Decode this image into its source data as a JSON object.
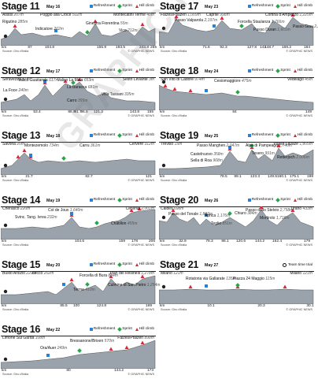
{
  "legend": {
    "refreshment": "Refreshment",
    "sprint": "Sprint",
    "hill": "Hill climb",
    "ttt": "Team time trial"
  },
  "km_label": "km",
  "source": "Source: Giro d'Italia",
  "credit": "© GRAPHIC NEWS",
  "watermark": "GRAPHIC NEWS",
  "stages": [
    {
      "title": "Stage 11",
      "date": "May 16",
      "start": "Assisi",
      "start_elev": "207m",
      "finish": "Montecatini Terme",
      "finish_elev": "40m",
      "labels": [
        {
          "t": "Poggio alla Croce",
          "e": "502m"
        },
        {
          "t": "Rigutino",
          "e": "285m"
        },
        {
          "t": "Indicatore",
          "e": "262m"
        },
        {
          "t": "Ginestra Fiorentina",
          "e": "55m"
        },
        {
          "t": "Vico",
          "e": "212m"
        }
      ],
      "km": [
        "87",
        "104.8",
        "155.9",
        "193.5",
        "243.8",
        "255"
      ]
    },
    {
      "title": "Stage 17",
      "date": "May 23",
      "start": "Falzes/Pfalzen",
      "start_elev": "1,009m",
      "finish": "Cortina d'Ampezzo",
      "finish_elev": "1,225m",
      "labels": [
        {
          "t": "Caprile",
          "e": "998m"
        },
        {
          "t": "Passo Valparola",
          "e": "2,197m"
        },
        {
          "t": "Forcella Staulanza",
          "e": "1,766m"
        },
        {
          "t": "Passo Duran",
          "e": "1,601m"
        },
        {
          "t": "Passo Giau",
          "e": "2,236m"
        }
      ],
      "km": [
        "71.6",
        "92.3",
        "127.8",
        "142",
        "148.7",
        "168.2",
        "184"
      ]
    },
    {
      "title": "Stage 12",
      "date": "May 17",
      "start": "Seravezza",
      "start_elev": "57m",
      "finish": "Sestri Levante",
      "finish_elev": "3m",
      "labels": [
        {
          "t": "Valico Guaitarola",
          "e": "617m"
        },
        {
          "t": "Valico La Mola",
          "e": "653m"
        },
        {
          "t": "La Baracca",
          "e": "681m"
        },
        {
          "t": "La Foce",
          "e": "240m"
        },
        {
          "t": "Carro",
          "e": "395m"
        },
        {
          "t": "Villa Tassani",
          "e": "335m"
        }
      ],
      "km": [
        "53.4",
        "88.9",
        "91.7",
        "96.8",
        "121.2",
        "143.8",
        "155"
      ]
    },
    {
      "title": "Stage 18",
      "date": "May 24",
      "start": "San Vito di Cadore",
      "start_elev": "974m",
      "finish": "Vedelago",
      "finish_elev": "45m",
      "labels": [
        {
          "t": "Cesiomaggiore",
          "e": "475m"
        }
      ],
      "km": [
        "84",
        "149"
      ]
    },
    {
      "title": "Stage 13",
      "date": "May 18",
      "start": "Savona",
      "start_elev": "20m",
      "finish": "Cervere",
      "finish_elev": "312m",
      "labels": [
        {
          "t": "Montezemolo",
          "e": "734m"
        },
        {
          "t": "Carru",
          "e": "361m"
        }
      ],
      "km": [
        "21.7",
        "82.7",
        "121"
      ]
    },
    {
      "title": "Stage 19",
      "date": "May 25",
      "start": "Treviso",
      "start_elev": "15m",
      "finish": "Passo Lavazè",
      "finish_elev": "1,805m",
      "labels": [
        {
          "t": "Passo Manghen",
          "e": "2,047m"
        },
        {
          "t": "Alpe di Pampeago",
          "e": "1,740m"
        },
        {
          "t": "Castelnuovo",
          "e": "358m"
        },
        {
          "t": "Sella di Roa",
          "e": "968m"
        },
        {
          "t": "Tesero",
          "e": "991m"
        },
        {
          "t": "Retterjoch",
          "e": "2,006m"
        }
      ],
      "km": [
        "78.5",
        "99.1",
        "123.3",
        "149.5",
        "160.1",
        "175.1",
        "198"
      ]
    },
    {
      "title": "Stage 14",
      "date": "May 19",
      "start": "Cherasco",
      "start_elev": "220m",
      "finish": "Cervinia",
      "finish_elev": "2,001m",
      "labels": [
        {
          "t": "Col de Joux",
          "e": "1,640m"
        },
        {
          "t": "Svinc. Tang. Ivrea",
          "e": "232m"
        },
        {
          "t": "Châtillon",
          "e": "455m"
        }
      ],
      "km": [
        "104.6",
        "159",
        "178",
        "206"
      ]
    },
    {
      "title": "Stage 20",
      "date": "May 26",
      "start": "Caldes",
      "start_elev": "698m",
      "finish": "Tirano",
      "finish_elev": "433m",
      "labels": [
        {
          "t": "Passo del Tonale",
          "e": "1,883m"
        },
        {
          "t": "Aprica",
          "e": "1,176m"
        },
        {
          "t": "Teglio",
          "e": "851m"
        },
        {
          "t": "Chiuro",
          "e": "384m"
        },
        {
          "t": "Passo dello Stelvio",
          "e": "2,758m"
        },
        {
          "t": "Mortirolo",
          "e": "1,718m"
        }
      ],
      "km": [
        "32.9",
        "78.3",
        "98.1",
        "120.6",
        "144.2",
        "162.4",
        "179"
      ]
    },
    {
      "title": "Stage 15",
      "date": "May 20",
      "start": "Busto Arsizio",
      "start_elev": "229m",
      "finish": "Pian dei Resinelli",
      "finish_elev": "1,278m",
      "labels": [
        {
          "t": "Lecco",
          "e": "202m"
        },
        {
          "t": "Forcella di Bura",
          "e": "884m"
        },
        {
          "t": "Terme",
          "e": "410m"
        },
        {
          "t": "Culmine di San Pietro",
          "e": "1,254m"
        }
      ],
      "km": [
        "85.5",
        "100",
        "124.8",
        "169"
      ]
    },
    {
      "title": "Stage 21",
      "date": "May 27",
      "start": "Milano",
      "start_elev": "121m",
      "finish": "Milano",
      "finish_elev": "121m",
      "labels": [
        {
          "t": "Rotatoria via Gallarate",
          "e": "135m"
        },
        {
          "t": "Piazza 24 Maggio",
          "e": "115m"
        }
      ],
      "km": [
        "10.1",
        "20.3",
        "30.1"
      ]
    },
    {
      "title": "Stage 16",
      "date": "May 22",
      "start": "Limone Sul Garda",
      "start_elev": "108m",
      "finish": "Falzes/Pfalzen",
      "finish_elev": "898m",
      "labels": [
        {
          "t": "Bressanone/Brixen",
          "e": "570m"
        },
        {
          "t": "Ora/Auer",
          "e": "249m"
        }
      ],
      "km": [
        "80",
        "144.2",
        "173"
      ]
    }
  ]
}
